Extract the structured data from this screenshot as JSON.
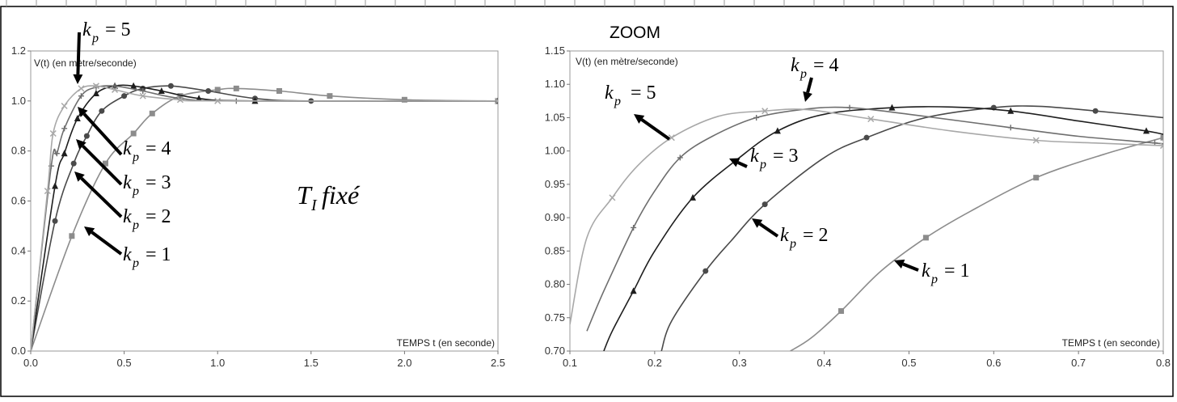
{
  "chart_data": [
    {
      "type": "line",
      "panel": "full",
      "title": "",
      "xlabel": "TEMPS t (en seconde)",
      "ylabel": "V(t) (en mètre/seconde)",
      "xlim": [
        0,
        2.5
      ],
      "ylim": [
        0,
        1.2
      ],
      "xticks": [
        "0.0",
        "0.5",
        "1.0",
        "1.5",
        "2.0",
        "2.5"
      ],
      "yticks": [
        "0.0",
        "0.2",
        "0.4",
        "0.6",
        "0.8",
        "1.0",
        "1.2"
      ],
      "grid": false,
      "series": [
        {
          "name": "k_p = 1",
          "color": "#8c8c8c",
          "marker": "square",
          "points": [
            [
              0,
              0
            ],
            [
              0.22,
              0.46
            ],
            [
              0.4,
              0.75
            ],
            [
              0.55,
              0.87
            ],
            [
              0.65,
              0.95
            ],
            [
              0.8,
              1.02
            ],
            [
              1.0,
              1.045
            ],
            [
              1.1,
              1.05
            ],
            [
              1.33,
              1.04
            ],
            [
              1.6,
              1.02
            ],
            [
              2.0,
              1.005
            ],
            [
              2.5,
              1.0
            ]
          ]
        },
        {
          "name": "k_p = 2",
          "color": "#4a4a4a",
          "marker": "circle",
          "points": [
            [
              0,
              0
            ],
            [
              0.13,
              0.52
            ],
            [
              0.23,
              0.75
            ],
            [
              0.3,
              0.86
            ],
            [
              0.38,
              0.96
            ],
            [
              0.5,
              1.02
            ],
            [
              0.6,
              1.05
            ],
            [
              0.75,
              1.06
            ],
            [
              0.95,
              1.04
            ],
            [
              1.2,
              1.01
            ],
            [
              1.5,
              1.0
            ],
            [
              2.5,
              1.0
            ]
          ]
        },
        {
          "name": "k_p = 3",
          "color": "#1e1e1e",
          "marker": "triangle",
          "points": [
            [
              0,
              0
            ],
            [
              0.13,
              0.66
            ],
            [
              0.18,
              0.79
            ],
            [
              0.25,
              0.93
            ],
            [
              0.35,
              1.03
            ],
            [
              0.45,
              1.06
            ],
            [
              0.55,
              1.06
            ],
            [
              0.7,
              1.04
            ],
            [
              0.9,
              1.01
            ],
            [
              1.2,
              1.0
            ],
            [
              2.5,
              1.0
            ]
          ]
        },
        {
          "name": "k_p = 4",
          "color": "#6e6e6e",
          "marker": "plus",
          "points": [
            [
              0,
              0
            ],
            [
              0.11,
              0.74
            ],
            [
              0.14,
              0.79
            ],
            [
              0.18,
              0.89
            ],
            [
              0.27,
              1.02
            ],
            [
              0.35,
              1.055
            ],
            [
              0.45,
              1.06
            ],
            [
              0.6,
              1.04
            ],
            [
              0.8,
              1.01
            ],
            [
              1.1,
              1.0
            ],
            [
              2.5,
              1.0
            ]
          ]
        },
        {
          "name": "k_p = 5",
          "color": "#a8a8a8",
          "marker": "x",
          "points": [
            [
              0,
              0
            ],
            [
              0.09,
              0.64
            ],
            [
              0.12,
              0.87
            ],
            [
              0.18,
              0.98
            ],
            [
              0.27,
              1.05
            ],
            [
              0.35,
              1.06
            ],
            [
              0.45,
              1.045
            ],
            [
              0.6,
              1.02
            ],
            [
              0.8,
              1.005
            ],
            [
              1.0,
              1.0
            ],
            [
              2.5,
              1.0
            ]
          ]
        }
      ],
      "annotations": [
        "T_I fixé"
      ]
    },
    {
      "type": "line",
      "panel": "zoom",
      "title": "ZOOM",
      "xlabel": "TEMPS t (en seconde)",
      "ylabel": "V(t) (en mètre/seconde)",
      "xlim": [
        0.1,
        0.8
      ],
      "ylim": [
        0.7,
        1.15
      ],
      "xticks": [
        "0.1",
        "0.2",
        "0.3",
        "0.4",
        "0.5",
        "0.6",
        "0.7",
        "0.8"
      ],
      "yticks": [
        "0.70",
        "0.75",
        "0.80",
        "0.85",
        "0.90",
        "0.95",
        "1.00",
        "1.05",
        "1.10",
        "1.15"
      ],
      "grid": false,
      "series": [
        {
          "name": "k_p = 1",
          "color": "#8c8c8c",
          "marker": "square",
          "points": [
            [
              0.36,
              0.7
            ],
            [
              0.385,
              0.72
            ],
            [
              0.42,
              0.76
            ],
            [
              0.467,
              0.82
            ],
            [
              0.52,
              0.87
            ],
            [
              0.573,
              0.91
            ],
            [
              0.65,
              0.96
            ],
            [
              0.73,
              0.995
            ],
            [
              0.8,
              1.02
            ]
          ]
        },
        {
          "name": "k_p = 2",
          "color": "#4a4a4a",
          "marker": "circle",
          "points": [
            [
              0.208,
              0.7
            ],
            [
              0.22,
              0.745
            ],
            [
              0.26,
              0.82
            ],
            [
              0.29,
              0.865
            ],
            [
              0.33,
              0.92
            ],
            [
              0.4,
              0.99
            ],
            [
              0.45,
              1.02
            ],
            [
              0.52,
              1.05
            ],
            [
              0.6,
              1.065
            ],
            [
              0.653,
              1.067
            ],
            [
              0.72,
              1.06
            ],
            [
              0.8,
              1.05
            ]
          ]
        },
        {
          "name": "k_p = 3",
          "color": "#1e1e1e",
          "marker": "triangle",
          "points": [
            [
              0.14,
              0.7
            ],
            [
              0.15,
              0.73
            ],
            [
              0.175,
              0.79
            ],
            [
              0.2,
              0.85
            ],
            [
              0.245,
              0.93
            ],
            [
              0.3,
              0.99
            ],
            [
              0.345,
              1.03
            ],
            [
              0.4,
              1.055
            ],
            [
              0.48,
              1.065
            ],
            [
              0.55,
              1.066
            ],
            [
              0.62,
              1.06
            ],
            [
              0.7,
              1.045
            ],
            [
              0.78,
              1.03
            ],
            [
              0.8,
              1.025
            ]
          ]
        },
        {
          "name": "k_p = 4",
          "color": "#6e6e6e",
          "marker": "plus",
          "points": [
            [
              0.12,
              0.73
            ],
            [
              0.14,
              0.79
            ],
            [
              0.175,
              0.885
            ],
            [
              0.2,
              0.94
            ],
            [
              0.23,
              0.99
            ],
            [
              0.268,
              1.022
            ],
            [
              0.32,
              1.05
            ],
            [
              0.38,
              1.063
            ],
            [
              0.43,
              1.065
            ],
            [
              0.5,
              1.055
            ],
            [
              0.62,
              1.035
            ],
            [
              0.7,
              1.022
            ],
            [
              0.79,
              1.012
            ],
            [
              0.8,
              1.01
            ]
          ]
        },
        {
          "name": "k_p = 5",
          "color": "#a8a8a8",
          "marker": "x",
          "points": [
            [
              0.1,
              0.74
            ],
            [
              0.12,
              0.87
            ],
            [
              0.15,
              0.93
            ],
            [
              0.18,
              0.978
            ],
            [
              0.22,
              1.02
            ],
            [
              0.275,
              1.052
            ],
            [
              0.33,
              1.06
            ],
            [
              0.38,
              1.062
            ],
            [
              0.455,
              1.048
            ],
            [
              0.55,
              1.03
            ],
            [
              0.65,
              1.016
            ],
            [
              0.72,
              1.012
            ],
            [
              0.8,
              1.008
            ]
          ]
        }
      ]
    }
  ],
  "labels": {
    "zoom_title": "ZOOM",
    "kp_letter": "k",
    "kp_subscript": "p",
    "ti_letter": "T",
    "ti_subscript": "I",
    "ti_word": "fixé",
    "kp_values": {
      "left_5": "= 5",
      "left_4": "= 4",
      "left_3": "= 3",
      "left_2": "= 2",
      "left_1": "= 1",
      "right_5": "= 5",
      "right_4": "= 4",
      "right_3": "= 3",
      "right_2": "= 2",
      "right_1": "= 1"
    }
  }
}
